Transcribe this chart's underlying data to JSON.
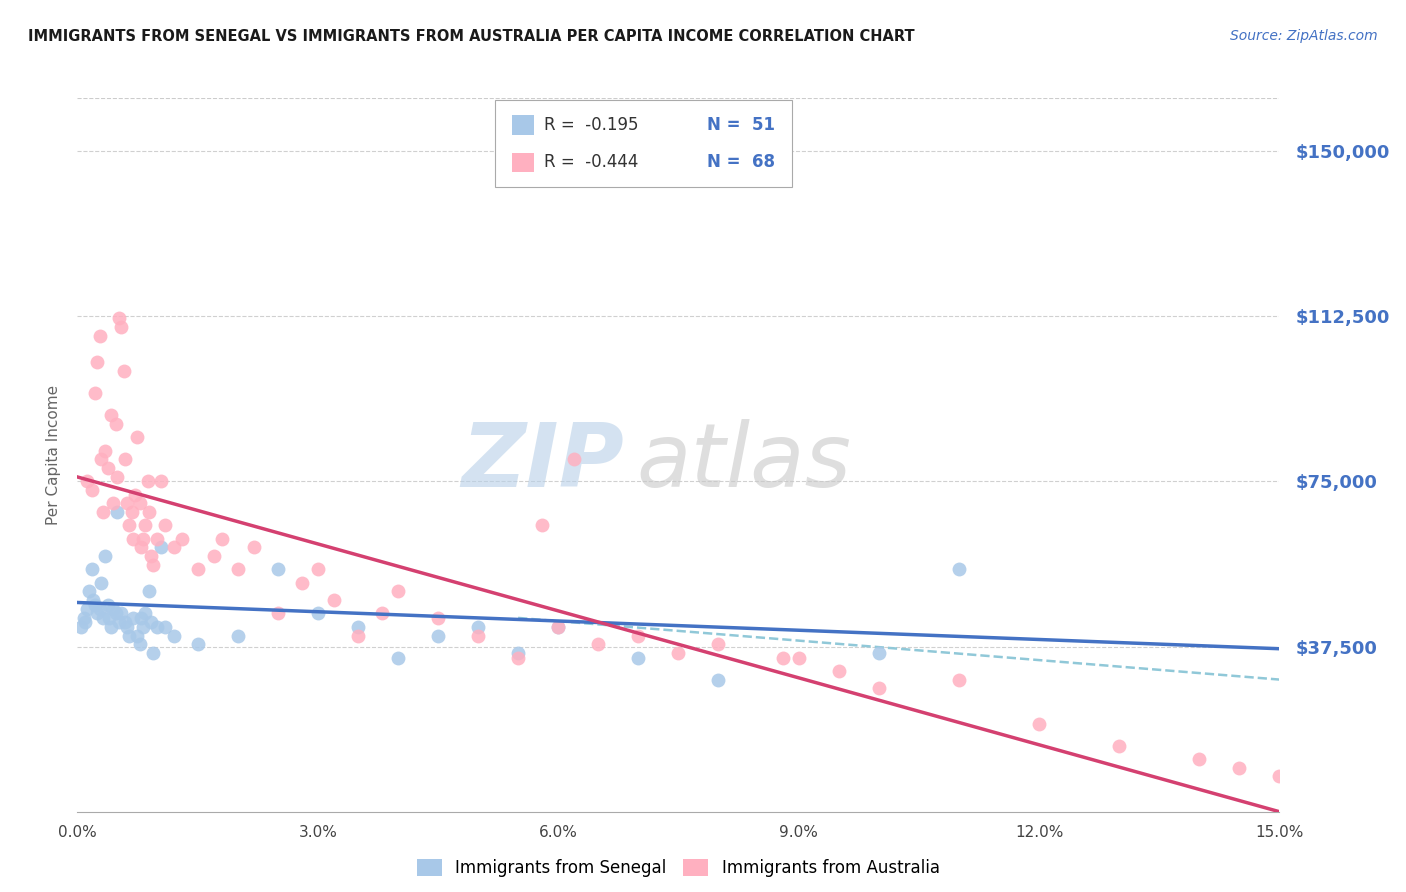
{
  "title": "IMMIGRANTS FROM SENEGAL VS IMMIGRANTS FROM AUSTRALIA PER CAPITA INCOME CORRELATION CHART",
  "source": "Source: ZipAtlas.com",
  "ylabel": "Per Capita Income",
  "ytick_labels": [
    "$150,000",
    "$112,500",
    "$75,000",
    "$37,500"
  ],
  "ytick_vals": [
    150000,
    112500,
    75000,
    37500
  ],
  "ylim": [
    0,
    162000
  ],
  "xlim": [
    0.0,
    15.0
  ],
  "title_color": "#1a1a1a",
  "source_color": "#4472c4",
  "yticklabel_color": "#4472c4",
  "grid_color": "#d0d0d0",
  "watermark_zip_color": "#b8d0e8",
  "watermark_atlas_color": "#c8c8c8",
  "legend_r1": "R =  -0.195",
  "legend_n1": "N =  51",
  "legend_r2": "R =  -0.444",
  "legend_n2": "N =  68",
  "senegal_color": "#a8c8e8",
  "australia_color": "#ffb0c0",
  "line_senegal_color": "#4472c4",
  "line_australia_color": "#d44070",
  "dashed_ext_color": "#90c8d8",
  "senegal_label": "Immigrants from Senegal",
  "australia_label": "Immigrants from Australia",
  "xtick_labels": [
    "0.0%",
    "3.0%",
    "6.0%",
    "9.0%",
    "12.0%",
    "15.0%"
  ],
  "xtick_vals": [
    0.0,
    3.0,
    6.0,
    9.0,
    12.0,
    15.0
  ],
  "senegal_line_x0": 0.0,
  "senegal_line_x1": 15.0,
  "senegal_line_y0": 47500,
  "senegal_line_y1": 37000,
  "australia_line_x0": 0.0,
  "australia_line_x1": 15.0,
  "australia_line_y0": 76000,
  "australia_line_y1": 0,
  "dashed_line_x0": 5.5,
  "dashed_line_x1": 15.0,
  "dashed_line_y0": 44000,
  "dashed_line_y1": 30000,
  "senegal_x": [
    0.05,
    0.08,
    0.1,
    0.12,
    0.15,
    0.18,
    0.2,
    0.22,
    0.25,
    0.28,
    0.3,
    0.32,
    0.35,
    0.38,
    0.4,
    0.42,
    0.45,
    0.48,
    0.5,
    0.52,
    0.55,
    0.6,
    0.62,
    0.65,
    0.7,
    0.75,
    0.78,
    0.8,
    0.82,
    0.85,
    0.9,
    0.92,
    0.95,
    1.0,
    1.05,
    1.1,
    1.2,
    1.5,
    2.0,
    2.5,
    3.0,
    3.5,
    4.0,
    4.5,
    5.0,
    5.5,
    6.0,
    7.0,
    8.0,
    10.0,
    11.0
  ],
  "senegal_y": [
    42000,
    44000,
    43000,
    46000,
    50000,
    55000,
    48000,
    47000,
    45000,
    46000,
    52000,
    44000,
    58000,
    47000,
    44000,
    42000,
    46000,
    45000,
    68000,
    43000,
    45000,
    43000,
    42000,
    40000,
    44000,
    40000,
    38000,
    44000,
    42000,
    45000,
    50000,
    43000,
    36000,
    42000,
    60000,
    42000,
    40000,
    38000,
    40000,
    55000,
    45000,
    42000,
    35000,
    40000,
    42000,
    36000,
    42000,
    35000,
    30000,
    36000,
    55000
  ],
  "australia_x": [
    0.12,
    0.18,
    0.22,
    0.25,
    0.28,
    0.3,
    0.32,
    0.35,
    0.38,
    0.42,
    0.45,
    0.48,
    0.5,
    0.52,
    0.55,
    0.58,
    0.6,
    0.62,
    0.65,
    0.68,
    0.7,
    0.72,
    0.75,
    0.78,
    0.8,
    0.82,
    0.85,
    0.88,
    0.9,
    0.92,
    0.95,
    1.0,
    1.05,
    1.1,
    1.2,
    1.3,
    1.5,
    1.7,
    1.8,
    2.0,
    2.2,
    2.5,
    2.8,
    3.0,
    3.2,
    3.5,
    3.8,
    4.0,
    4.5,
    5.0,
    5.5,
    6.0,
    6.5,
    7.0,
    7.5,
    8.0,
    9.0,
    10.0,
    11.0,
    12.0,
    13.0,
    14.0,
    14.5,
    15.0,
    9.5,
    8.8,
    6.2,
    5.8
  ],
  "australia_y": [
    75000,
    73000,
    95000,
    102000,
    108000,
    80000,
    68000,
    82000,
    78000,
    90000,
    70000,
    88000,
    76000,
    112000,
    110000,
    100000,
    80000,
    70000,
    65000,
    68000,
    62000,
    72000,
    85000,
    70000,
    60000,
    62000,
    65000,
    75000,
    68000,
    58000,
    56000,
    62000,
    75000,
    65000,
    60000,
    62000,
    55000,
    58000,
    62000,
    55000,
    60000,
    45000,
    52000,
    55000,
    48000,
    40000,
    45000,
    50000,
    44000,
    40000,
    35000,
    42000,
    38000,
    40000,
    36000,
    38000,
    35000,
    28000,
    30000,
    20000,
    15000,
    12000,
    10000,
    8000,
    32000,
    35000,
    80000,
    65000
  ]
}
